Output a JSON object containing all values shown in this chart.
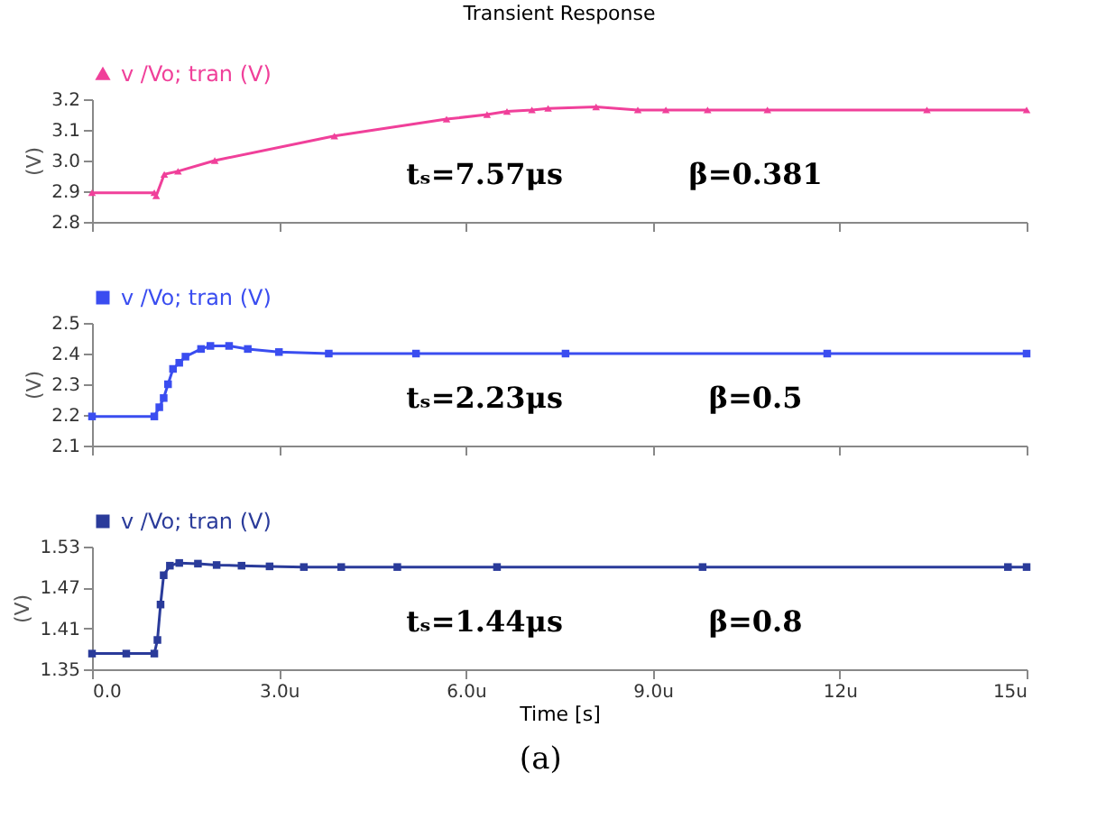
{
  "chart_data": [
    {
      "type": "line",
      "title": "Transient Response",
      "ylabel": "(V)",
      "legend": "top left",
      "marker": "triangle",
      "tick_labels": "y",
      "xlim": [
        0,
        15
      ],
      "xticks": [
        0,
        3,
        6,
        9,
        12,
        15
      ],
      "ylim": [
        2.8,
        3.2
      ],
      "yticks": [
        {
          "value": 2.8,
          "label": "2.8"
        },
        {
          "value": 2.9,
          "label": "2.9"
        },
        {
          "value": 3.0,
          "label": "3.0"
        },
        {
          "value": 3.1,
          "label": "3.1"
        },
        {
          "value": 3.2,
          "label": "3.2"
        }
      ],
      "annotations": [
        "tₛ=7.57μs",
        "β=0.381"
      ],
      "series": [
        {
          "name": "v /Vo; tran (V)",
          "color": "#f0409a",
          "x": [
            0,
            1.0,
            1.03,
            1.16,
            1.38,
            1.97,
            3.89,
            5.69,
            6.34,
            6.66,
            7.06,
            7.32,
            8.09,
            8.76,
            9.21,
            9.88,
            10.84,
            13.4,
            15
          ],
          "values": [
            2.895,
            2.895,
            2.885,
            2.955,
            2.965,
            3.0,
            3.08,
            3.135,
            3.15,
            3.16,
            3.165,
            3.17,
            3.175,
            3.165,
            3.165,
            3.165,
            3.165,
            3.165,
            3.165
          ]
        }
      ]
    },
    {
      "type": "line",
      "ylabel": "(V)",
      "legend": "top left",
      "marker": "square",
      "tick_labels": "y",
      "xlim": [
        0,
        15
      ],
      "xticks": [
        0,
        3,
        6,
        9,
        12,
        15
      ],
      "ylim": [
        2.1,
        2.5
      ],
      "yticks": [
        2.1,
        2.2,
        2.3,
        2.4,
        2.5
      ],
      "annotations": [
        "tₛ=2.23μs",
        "β=0.5"
      ],
      "series": [
        {
          "name": "v /Vo; tran (V)",
          "color": "#3a4df0",
          "x": [
            0,
            1.0,
            1.08,
            1.15,
            1.22,
            1.3,
            1.4,
            1.5,
            1.75,
            1.9,
            2.2,
            2.5,
            3.0,
            3.8,
            5.2,
            7.6,
            11.8,
            15
          ],
          "values": [
            2.195,
            2.195,
            2.225,
            2.255,
            2.3,
            2.35,
            2.37,
            2.39,
            2.415,
            2.425,
            2.425,
            2.415,
            2.405,
            2.4,
            2.4,
            2.4,
            2.4,
            2.4
          ]
        }
      ]
    },
    {
      "type": "line",
      "ylabel": "(V)",
      "xlabel": "Time [s]",
      "legend": "top left",
      "marker": "square",
      "xlim": [
        0,
        15
      ],
      "xticks": [
        {
          "value": 0,
          "label": "0.0"
        },
        {
          "value": 3,
          "label": "3.0u"
        },
        {
          "value": 6,
          "label": "6.0u"
        },
        {
          "value": 9,
          "label": "9.0u"
        },
        {
          "value": 12,
          "label": "12u"
        },
        {
          "value": 15,
          "label": "15u"
        }
      ],
      "ylim": [
        1.35,
        1.53
      ],
      "yticks": [
        1.35,
        1.41,
        1.47,
        1.53
      ],
      "annotations": [
        "tₛ=1.44μs",
        "β=0.8",
        "(a)"
      ],
      "series": [
        {
          "name": "v /Vo; tran (V)",
          "color": "#2a3b9a",
          "x": [
            0,
            0.55,
            1.0,
            1.05,
            1.1,
            1.15,
            1.25,
            1.4,
            1.7,
            2.0,
            2.4,
            2.85,
            3.4,
            4.0,
            4.9,
            6.5,
            9.8,
            14.7,
            15
          ],
          "values": [
            1.373,
            1.373,
            1.373,
            1.393,
            1.445,
            1.488,
            1.502,
            1.506,
            1.505,
            1.503,
            1.502,
            1.501,
            1.5,
            1.5,
            1.5,
            1.5,
            1.5,
            1.5,
            1.5
          ]
        }
      ]
    }
  ]
}
